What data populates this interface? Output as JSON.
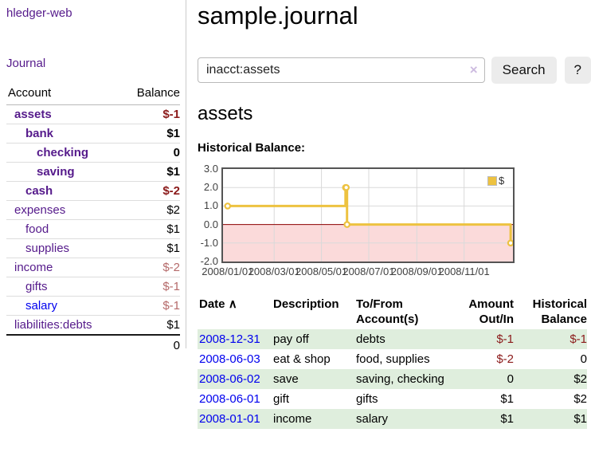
{
  "app_title": "hledger-web",
  "nav": {
    "journal": "Journal"
  },
  "sidebar": {
    "headers": {
      "account": "Account",
      "balance": "Balance"
    },
    "rows": [
      {
        "name": "assets",
        "indent": 1,
        "bold": true,
        "balance": "$-1",
        "balance_style": "neg-strong"
      },
      {
        "name": "bank",
        "indent": 2,
        "bold": true,
        "balance": "$1",
        "balance_style": "pos"
      },
      {
        "name": "checking",
        "indent": 3,
        "bold": true,
        "balance": "0",
        "balance_style": "pos"
      },
      {
        "name": "saving",
        "indent": 3,
        "bold": true,
        "balance": "$1",
        "balance_style": "pos"
      },
      {
        "name": "cash",
        "indent": 2,
        "bold": true,
        "balance": "$-2",
        "balance_style": "neg-strong"
      },
      {
        "name": "expenses",
        "indent": 1,
        "bold": false,
        "balance": "$2",
        "balance_style": "pos"
      },
      {
        "name": "food",
        "indent": 2,
        "bold": false,
        "balance": "$1",
        "balance_style": "pos"
      },
      {
        "name": "supplies",
        "indent": 2,
        "bold": false,
        "balance": "$1",
        "balance_style": "pos"
      },
      {
        "name": "income",
        "indent": 1,
        "bold": false,
        "balance": "$-2",
        "balance_style": "neg-soft"
      },
      {
        "name": "gifts",
        "indent": 2,
        "bold": false,
        "balance": "$-1",
        "balance_style": "neg-soft"
      },
      {
        "name": "salary",
        "indent": 2,
        "bold": false,
        "balance": "$-1",
        "balance_style": "neg-soft",
        "link_style": "blue"
      },
      {
        "name": "liabilities:debts",
        "indent": 1,
        "bold": false,
        "balance": "$1",
        "balance_style": "pos"
      }
    ],
    "total": "0"
  },
  "main": {
    "title": "sample.journal",
    "search": {
      "value": "inacct:assets",
      "clear_icon": "×",
      "search_button": "Search",
      "help_button": "?"
    },
    "account_heading": "assets",
    "chart_heading": "Historical Balance:"
  },
  "chart_data": {
    "type": "line",
    "step": true,
    "title": "Historical Balance",
    "series": [
      {
        "name": "$",
        "color": "#edc240",
        "points": [
          [
            "2008-01-01",
            1
          ],
          [
            "2008-06-01",
            2
          ],
          [
            "2008-06-02",
            2
          ],
          [
            "2008-06-03",
            0
          ],
          [
            "2008-12-31",
            -1
          ]
        ]
      }
    ],
    "x_tick_labels": [
      "2008/01/01",
      "2008/03/01",
      "2008/05/01",
      "2008/07/01",
      "2008/09/01",
      "2008/11/01"
    ],
    "y_tick_labels": [
      "3.0",
      "2.0",
      "1.0",
      "0.0",
      "-1.0",
      "-2.0"
    ],
    "ylim": [
      -2,
      3
    ],
    "xlim_days": [
      -6,
      368
    ],
    "grid": true,
    "legend_position": "top-right",
    "zero_line_color": "#8b0000",
    "negative_fill": "#fbdada",
    "grid_color": "#d9d9d9",
    "border_color": "#545454"
  },
  "register": {
    "headers": {
      "date": "Date",
      "sort_icon": "∧",
      "description": "Description",
      "accounts": "To/From Account(s)",
      "amount": "Amount Out/In",
      "balance": "Historical Balance"
    },
    "rows": [
      {
        "date": "2008-12-31",
        "description": "pay off",
        "accounts": "debts",
        "amount": "$-1",
        "amount_negative": true,
        "balance": "$-1",
        "balance_negative": true
      },
      {
        "date": "2008-06-03",
        "description": "eat & shop",
        "accounts": "food, supplies",
        "amount": "$-2",
        "amount_negative": true,
        "balance": "0",
        "balance_negative": false
      },
      {
        "date": "2008-06-02",
        "description": "save",
        "accounts": "saving, checking",
        "amount": "0",
        "amount_negative": false,
        "balance": "$2",
        "balance_negative": false
      },
      {
        "date": "2008-06-01",
        "description": "gift",
        "accounts": "gifts",
        "amount": "$1",
        "amount_negative": false,
        "balance": "$2",
        "balance_negative": false
      },
      {
        "date": "2008-01-01",
        "description": "income",
        "accounts": "salary",
        "amount": "$1",
        "amount_negative": false,
        "balance": "$1",
        "balance_negative": false
      }
    ]
  }
}
